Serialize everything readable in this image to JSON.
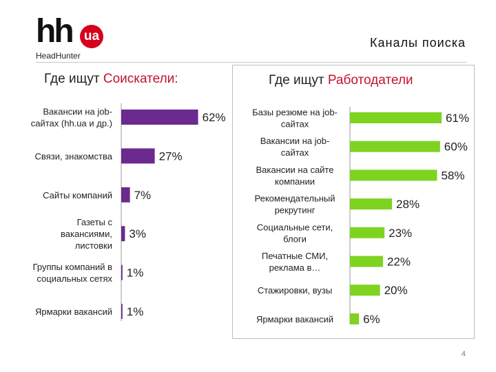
{
  "logo": {
    "mark": "hh",
    "badge": "ua",
    "name": "HeadHunter"
  },
  "slide_title": "Каналы поиска",
  "left_panel": {
    "title_prefix": "Где ищут ",
    "title_highlight": "Соискатели:"
  },
  "right_panel": {
    "title_prefix": "Где ищут ",
    "title_highlight": "Работодатели"
  },
  "page_number": "4",
  "colors": {
    "left_bar": "#6a2a8e",
    "right_bar": "#7ed321",
    "highlight": "#c4122f"
  },
  "chart_data": [
    {
      "type": "bar",
      "orientation": "horizontal",
      "title": "Где ищут Соискатели:",
      "categories": [
        [
          "Вакансии на job-",
          "сайтах (hh.ua и др.)"
        ],
        [
          "Связи, знакомства"
        ],
        [
          "Сайты компаний"
        ],
        [
          "Газеты с",
          "вакансиями,",
          "листовки"
        ],
        [
          "Группы компаний в",
          "социальных сетях"
        ],
        [
          "Ярмарки вакансий"
        ]
      ],
      "values": [
        62,
        27,
        7,
        3,
        1,
        1
      ],
      "value_labels": [
        "62%",
        "27%",
        "7%",
        "3%",
        "1%",
        "1%"
      ],
      "xlim": [
        0,
        100
      ],
      "grid": false,
      "legend": "none"
    },
    {
      "type": "bar",
      "orientation": "horizontal",
      "title": "Где ищут Работодатели",
      "categories": [
        [
          "Базы резюме на job-",
          "сайтах"
        ],
        [
          "Вакансии на job-",
          "сайтах"
        ],
        [
          "Вакансии на сайте",
          "компании"
        ],
        [
          "Рекомендательный",
          "рекрутинг"
        ],
        [
          "Социальные сети,",
          "блоги"
        ],
        [
          "Печатные СМИ,",
          "реклама в…"
        ],
        [
          "Стажировки, вузы"
        ],
        [
          "Ярмарки вакансий"
        ]
      ],
      "values": [
        61,
        60,
        58,
        28,
        23,
        22,
        20,
        6
      ],
      "value_labels": [
        "61%",
        "60%",
        "58%",
        "28%",
        "23%",
        "22%",
        "20%",
        "6%"
      ],
      "xlim": [
        0,
        100
      ],
      "grid": false,
      "legend": "none"
    }
  ]
}
